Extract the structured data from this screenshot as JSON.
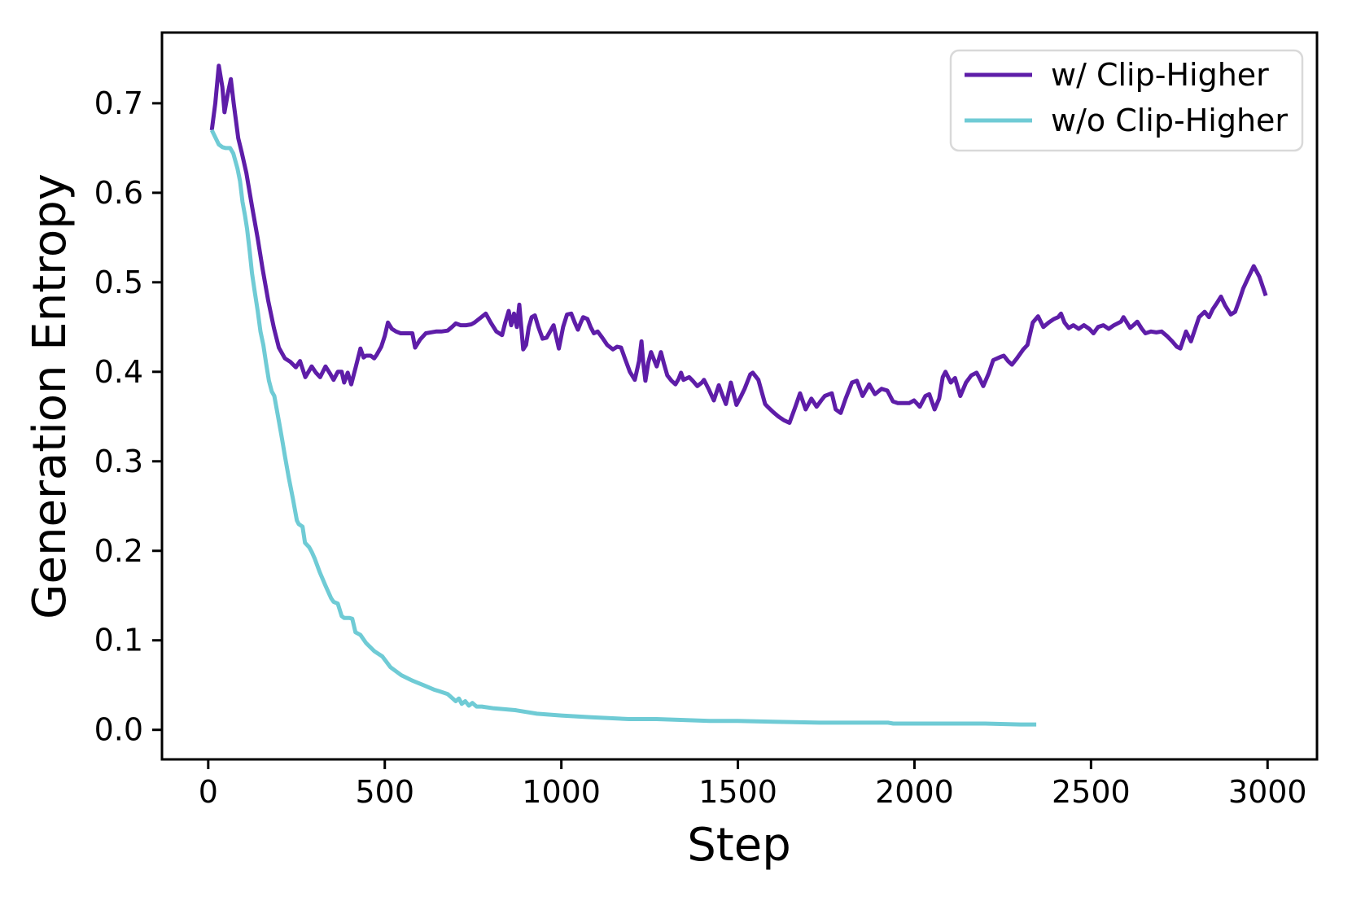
{
  "figure": {
    "background": "#ffffff",
    "axis_color": "#000000",
    "legend_border_color": "#d9d9d9"
  },
  "chart_data": {
    "type": "line",
    "title": "",
    "xlabel": "Step",
    "ylabel": "Generation Entropy",
    "xlim": [
      -131,
      3140
    ],
    "ylim": [
      -0.033,
      0.779
    ],
    "xticks": [
      0,
      500,
      1000,
      1500,
      2000,
      2500,
      3000
    ],
    "yticks": [
      0.0,
      0.1,
      0.2,
      0.3,
      0.4,
      0.5,
      0.6,
      0.7
    ],
    "grid": false,
    "legend": {
      "position": "upper-right"
    },
    "series": [
      {
        "name": "w/ Clip-Higher",
        "color": "#5E1DA8",
        "line_width": 5,
        "x": [
          10,
          20,
          30,
          40,
          46,
          55,
          64,
          72,
          78,
          85,
          95,
          108,
          124,
          140,
          154,
          170,
          186,
          200,
          217,
          233,
          248,
          260,
          275,
          293,
          305,
          317,
          332,
          345,
          355,
          367,
          378,
          385,
          395,
          405,
          417,
          431,
          440,
          447,
          460,
          470,
          477,
          490,
          500,
          509,
          520,
          532,
          545,
          560,
          578,
          586,
          600,
          616,
          630,
          645,
          660,
          678,
          690,
          701,
          715,
          730,
          745,
          754,
          770,
          786,
          800,
          816,
          832,
          841,
          851,
          858,
          866,
          874,
          881,
          892,
          900,
          908,
          916,
          925,
          935,
          947,
          958,
          968,
          978,
          985,
          993,
          1005,
          1016,
          1028,
          1038,
          1047,
          1055,
          1062,
          1074,
          1083,
          1092,
          1103,
          1116,
          1130,
          1146,
          1158,
          1169,
          1180,
          1194,
          1208,
          1220,
          1227,
          1232,
          1238,
          1246,
          1254,
          1262,
          1270,
          1276,
          1282,
          1290,
          1300,
          1312,
          1323,
          1332,
          1339,
          1346,
          1362,
          1372,
          1385,
          1398,
          1404,
          1418,
          1432,
          1446,
          1456,
          1466,
          1480,
          1488,
          1496,
          1508,
          1519,
          1535,
          1542,
          1558,
          1577,
          1584,
          1600,
          1615,
          1630,
          1646,
          1662,
          1676,
          1692,
          1708,
          1723,
          1736,
          1746,
          1766,
          1777,
          1791,
          1805,
          1823,
          1837,
          1853,
          1872,
          1888,
          1907,
          1923,
          1939,
          1953,
          1970,
          1985,
          1999,
          2015,
          2031,
          2042,
          2057,
          2070,
          2080,
          2088,
          2103,
          2115,
          2130,
          2146,
          2161,
          2176,
          2184,
          2195,
          2210,
          2223,
          2246,
          2253,
          2265,
          2276,
          2290,
          2308,
          2320,
          2335,
          2350,
          2365,
          2380,
          2395,
          2407,
          2415,
          2425,
          2437,
          2450,
          2465,
          2480,
          2495,
          2507,
          2520,
          2535,
          2550,
          2565,
          2585,
          2592,
          2611,
          2623,
          2631,
          2644,
          2654,
          2670,
          2685,
          2700,
          2715,
          2730,
          2743,
          2753,
          2769,
          2783,
          2795,
          2806,
          2822,
          2834,
          2845,
          2857,
          2868,
          2880,
          2896,
          2908,
          2920,
          2931,
          2945,
          2961,
          2977,
          2995
        ],
        "y": [
          0.67,
          0.7,
          0.742,
          0.718,
          0.69,
          0.71,
          0.727,
          0.7,
          0.682,
          0.661,
          0.645,
          0.622,
          0.585,
          0.549,
          0.515,
          0.479,
          0.449,
          0.427,
          0.415,
          0.411,
          0.405,
          0.412,
          0.394,
          0.406,
          0.399,
          0.394,
          0.406,
          0.398,
          0.391,
          0.4,
          0.4,
          0.388,
          0.399,
          0.386,
          0.404,
          0.426,
          0.416,
          0.418,
          0.418,
          0.415,
          0.419,
          0.428,
          0.44,
          0.455,
          0.448,
          0.445,
          0.443,
          0.443,
          0.443,
          0.427,
          0.436,
          0.443,
          0.444,
          0.445,
          0.445,
          0.446,
          0.45,
          0.454,
          0.452,
          0.452,
          0.453,
          0.455,
          0.46,
          0.465,
          0.455,
          0.445,
          0.441,
          0.455,
          0.468,
          0.452,
          0.465,
          0.45,
          0.475,
          0.425,
          0.43,
          0.45,
          0.461,
          0.463,
          0.45,
          0.437,
          0.438,
          0.445,
          0.452,
          0.44,
          0.426,
          0.45,
          0.464,
          0.465,
          0.455,
          0.447,
          0.455,
          0.461,
          0.459,
          0.45,
          0.443,
          0.445,
          0.438,
          0.43,
          0.425,
          0.428,
          0.427,
          0.415,
          0.4,
          0.391,
          0.412,
          0.434,
          0.41,
          0.39,
          0.41,
          0.422,
          0.414,
          0.406,
          0.414,
          0.422,
          0.41,
          0.396,
          0.39,
          0.386,
          0.392,
          0.399,
          0.391,
          0.394,
          0.39,
          0.384,
          0.388,
          0.391,
          0.38,
          0.368,
          0.385,
          0.374,
          0.364,
          0.388,
          0.376,
          0.363,
          0.372,
          0.381,
          0.397,
          0.399,
          0.391,
          0.364,
          0.361,
          0.355,
          0.35,
          0.346,
          0.343,
          0.36,
          0.376,
          0.358,
          0.37,
          0.361,
          0.368,
          0.373,
          0.376,
          0.358,
          0.354,
          0.37,
          0.388,
          0.39,
          0.373,
          0.386,
          0.375,
          0.381,
          0.379,
          0.367,
          0.365,
          0.365,
          0.365,
          0.368,
          0.361,
          0.373,
          0.375,
          0.358,
          0.37,
          0.394,
          0.4,
          0.388,
          0.393,
          0.373,
          0.388,
          0.396,
          0.399,
          0.393,
          0.384,
          0.398,
          0.413,
          0.417,
          0.418,
          0.412,
          0.408,
          0.415,
          0.425,
          0.43,
          0.455,
          0.462,
          0.45,
          0.455,
          0.459,
          0.461,
          0.465,
          0.455,
          0.449,
          0.452,
          0.448,
          0.452,
          0.448,
          0.443,
          0.45,
          0.452,
          0.448,
          0.452,
          0.456,
          0.461,
          0.449,
          0.453,
          0.456,
          0.448,
          0.443,
          0.445,
          0.444,
          0.445,
          0.44,
          0.434,
          0.428,
          0.426,
          0.445,
          0.434,
          0.448,
          0.461,
          0.467,
          0.461,
          0.47,
          0.477,
          0.484,
          0.474,
          0.464,
          0.467,
          0.48,
          0.493,
          0.505,
          0.518,
          0.506,
          0.485
        ]
      },
      {
        "name": "w/o Clip-Higher",
        "color": "#6FCBD5",
        "line_width": 5,
        "x": [
          10,
          20,
          30,
          40,
          50,
          62,
          71,
          83,
          90,
          97,
          104,
          110,
          117,
          124,
          131,
          140,
          148,
          156,
          164,
          172,
          180,
          187,
          194,
          201,
          209,
          217,
          228,
          240,
          251,
          256,
          267,
          274,
          286,
          293,
          302,
          316,
          332,
          348,
          355,
          367,
          378,
          385,
          400,
          408,
          417,
          431,
          447,
          470,
          493,
          516,
          547,
          578,
          609,
          639,
          655,
          678,
          701,
          710,
          718,
          728,
          738,
          748,
          760,
          775,
          809,
          869,
          931,
          1000,
          1085,
          1192,
          1270,
          1346,
          1420,
          1500,
          1600,
          1731,
          1850,
          1925,
          1940,
          2000,
          2100,
          2200,
          2300,
          2345
        ],
        "y": [
          0.67,
          0.662,
          0.654,
          0.651,
          0.65,
          0.65,
          0.644,
          0.627,
          0.613,
          0.59,
          0.575,
          0.56,
          0.536,
          0.51,
          0.491,
          0.468,
          0.445,
          0.43,
          0.409,
          0.39,
          0.378,
          0.373,
          0.358,
          0.343,
          0.325,
          0.306,
          0.282,
          0.258,
          0.234,
          0.23,
          0.227,
          0.209,
          0.204,
          0.199,
          0.191,
          0.176,
          0.161,
          0.147,
          0.143,
          0.141,
          0.127,
          0.125,
          0.125,
          0.124,
          0.109,
          0.106,
          0.097,
          0.088,
          0.082,
          0.07,
          0.061,
          0.055,
          0.05,
          0.045,
          0.043,
          0.04,
          0.032,
          0.035,
          0.029,
          0.032,
          0.027,
          0.03,
          0.026,
          0.026,
          0.024,
          0.022,
          0.018,
          0.016,
          0.014,
          0.012,
          0.012,
          0.011,
          0.01,
          0.01,
          0.009,
          0.008,
          0.008,
          0.008,
          0.007,
          0.007,
          0.007,
          0.007,
          0.006,
          0.006
        ]
      }
    ]
  }
}
